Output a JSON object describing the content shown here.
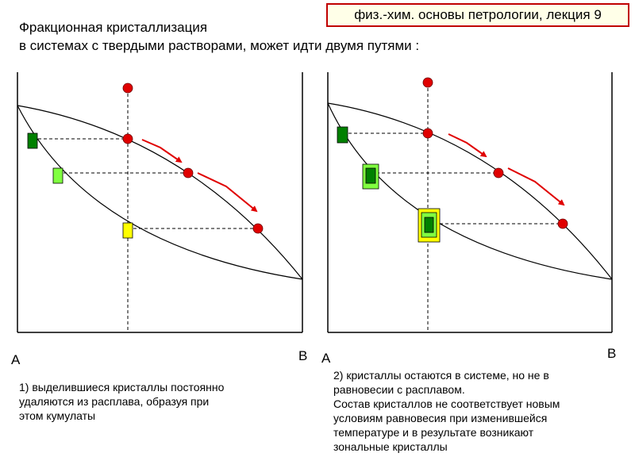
{
  "header": {
    "lecture": "физ.-хим. основы петрологии, лекция 9",
    "title_line1": "Фракционная кристаллизация",
    "title_line2": "в системах с твердыми растворами, может идти двумя путями :"
  },
  "left_diagram": {
    "label_a": "A",
    "label_b": "B",
    "caption": [
      "1) выделившиеся кристаллы постоянно",
      "удаляются из расплава, образуя при",
      "этом кумулаты"
    ]
  },
  "right_diagram": {
    "label_a": "A",
    "label_b": "B",
    "caption": [
      "2) кристаллы остаются в системе, но не в",
      "равновесии с расплавом.",
      "Состав кристаллов не соответствует новым",
      "условиям равновесия при изменившейся",
      "температуре и в результате возникают",
      "зональные кристаллы"
    ]
  },
  "colors": {
    "melt_point": "#e00000",
    "arrow": "#e00000",
    "crystal_dark": "#008000",
    "crystal_light": "#80ff40",
    "crystal_yellow": "#ffff00",
    "badge_border": "#c00000"
  }
}
